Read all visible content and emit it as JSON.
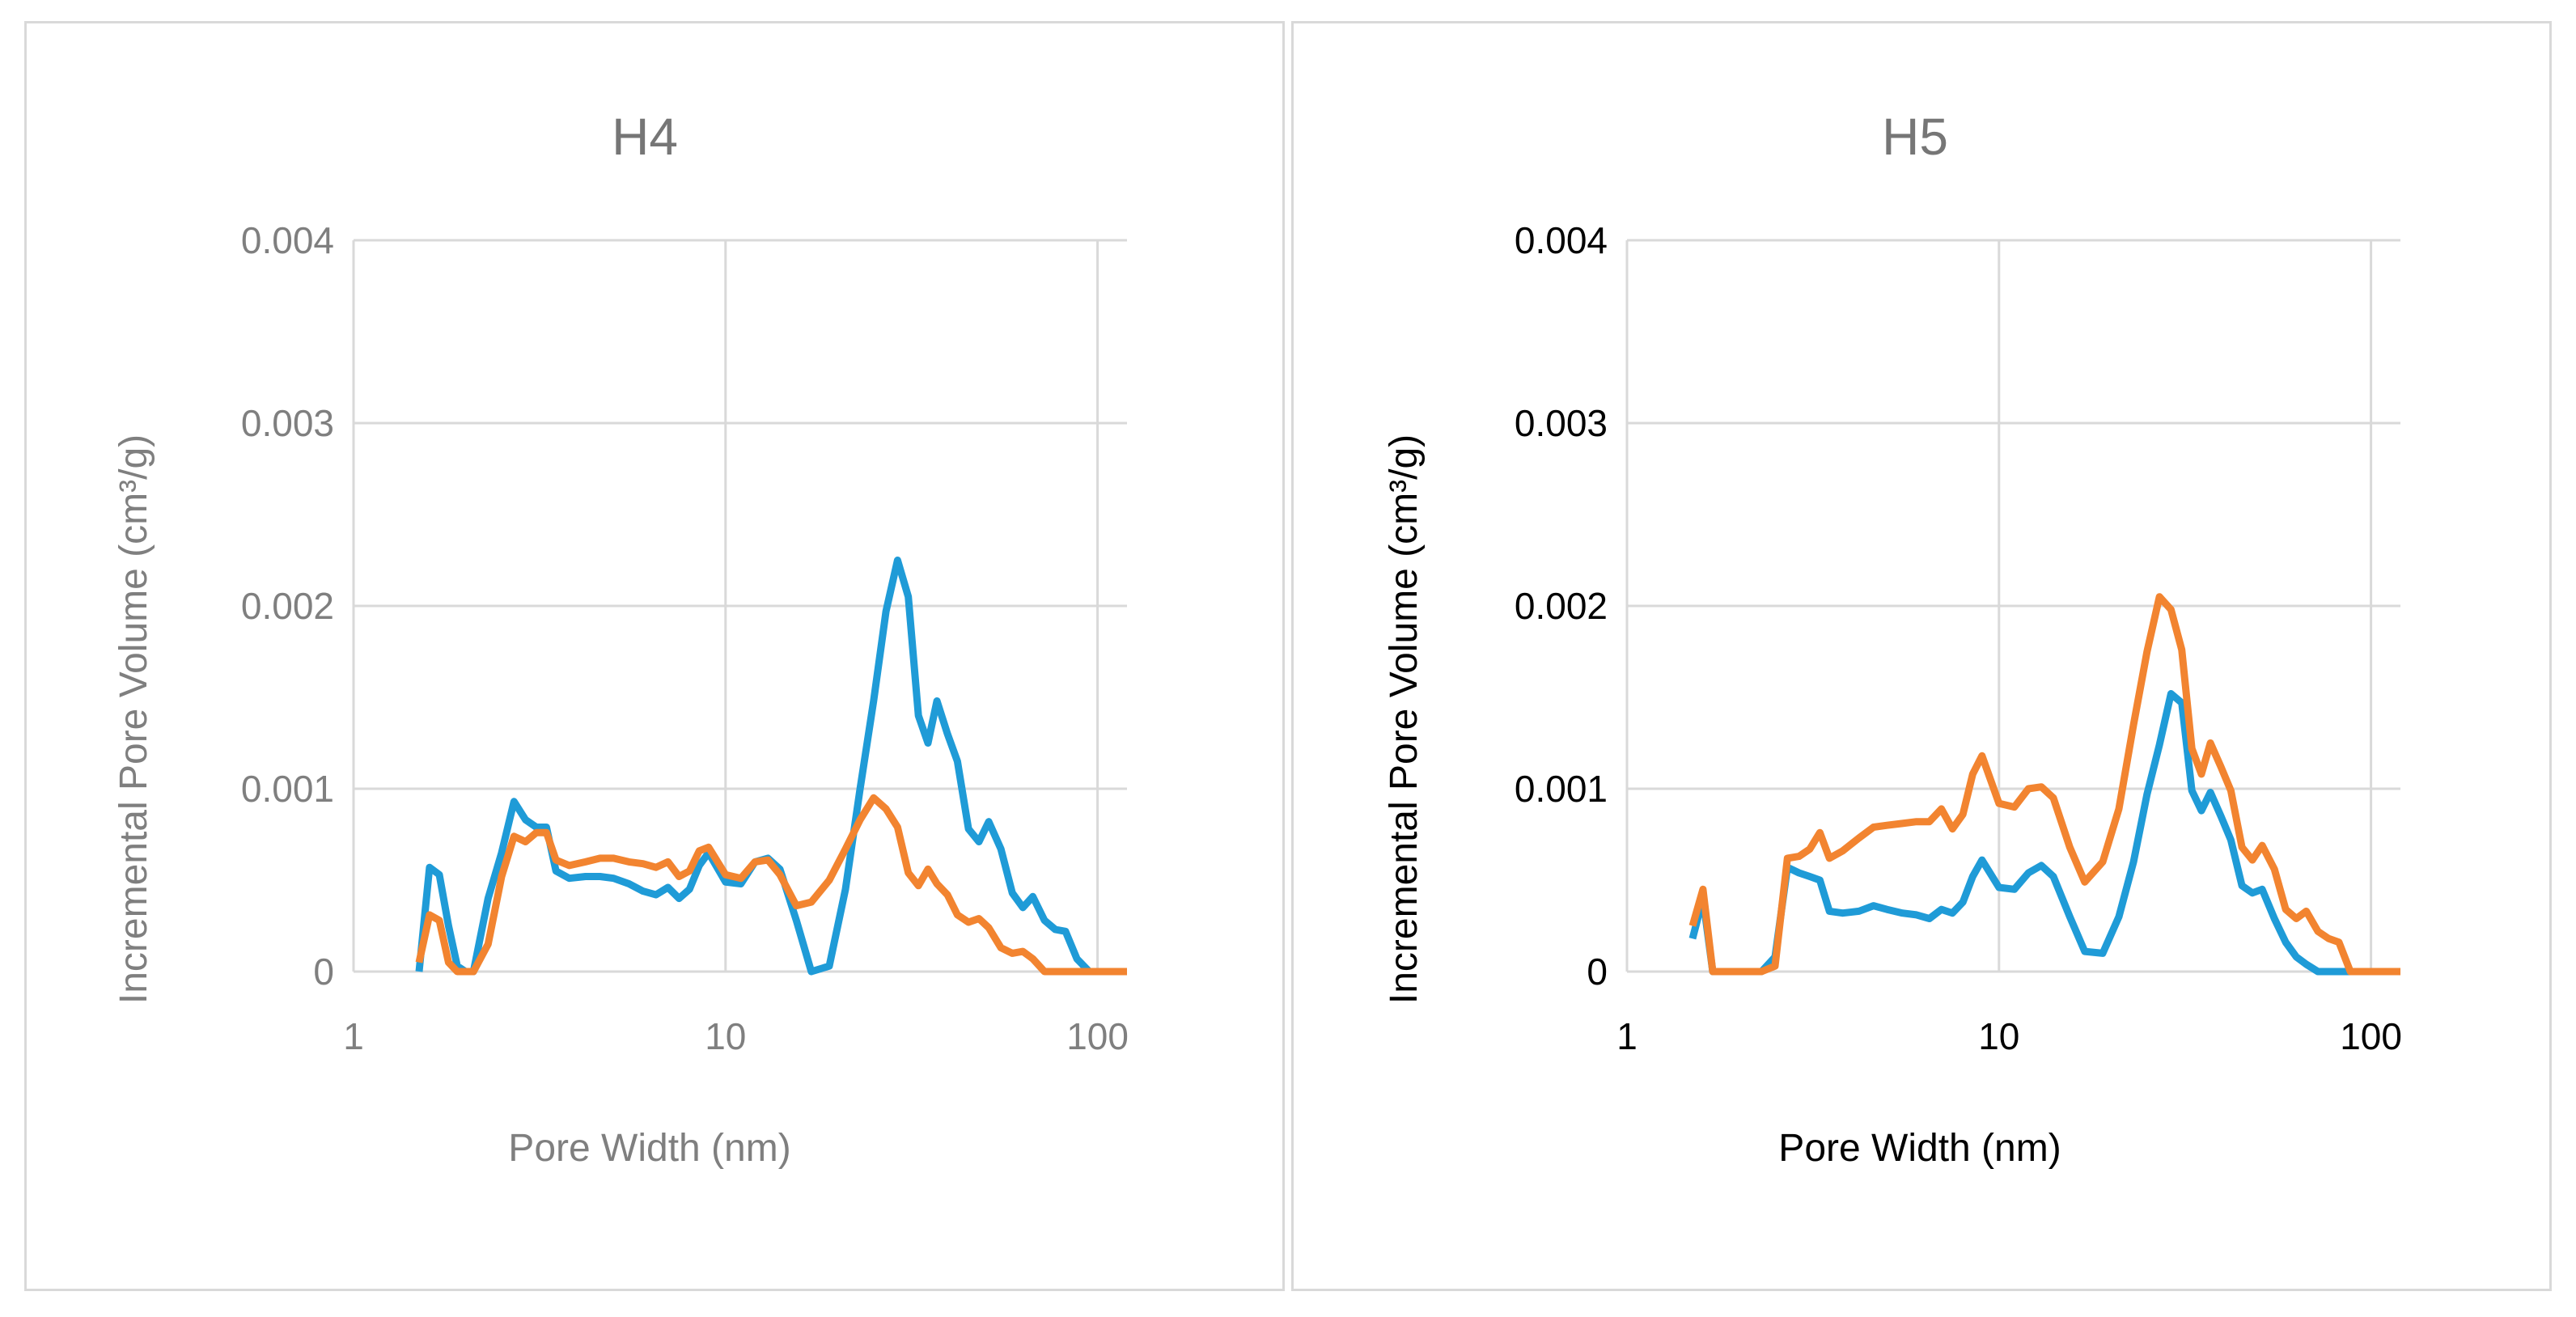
{
  "chart_data": [
    {
      "type": "line",
      "title": "H4",
      "xlabel": "Pore Width (nm)",
      "ylabel": "Incremental Pore Volume (cm³/g)",
      "xscale": "log",
      "xlim": [
        1,
        120
      ],
      "ylim": [
        0,
        0.004
      ],
      "xticks": [
        1,
        10,
        100
      ],
      "xtick_labels": [
        "1",
        "10",
        "100"
      ],
      "yticks": [
        0,
        0.001,
        0.002,
        0.003,
        0.004
      ],
      "ytick_labels": [
        "0",
        "0.001",
        "0.002",
        "0.003",
        "0.004"
      ],
      "grid": true,
      "text_color": "#7f7f7f",
      "series": [
        {
          "name": "series-blue",
          "color": "#1f9bd7",
          "x": [
            1.5,
            1.6,
            1.7,
            1.8,
            1.9,
            2.0,
            2.1,
            2.3,
            2.5,
            2.7,
            2.9,
            3.1,
            3.3,
            3.5,
            3.8,
            4.2,
            4.6,
            5.0,
            5.5,
            6.0,
            6.5,
            7.0,
            7.5,
            8.0,
            8.5,
            9.0,
            10.0,
            11.0,
            12.0,
            13.0,
            14.0,
            15.5,
            17.0,
            19.0,
            21.0,
            23.0,
            25.0,
            27.0,
            29.0,
            31.0,
            33.0,
            35.0,
            37.0,
            39.5,
            42.0,
            45.0,
            48.0,
            51.0,
            55.0,
            59.0,
            63.0,
            67.0,
            72.0,
            77.0,
            82.0,
            88.0,
            95.0,
            102.0,
            110.0,
            120.0
          ],
          "y": [
            0.0,
            0.00057,
            0.00053,
            0.00025,
            3e-05,
            0.0,
            0.0,
            0.0004,
            0.00065,
            0.00093,
            0.00083,
            0.00079,
            0.00079,
            0.00055,
            0.00051,
            0.00052,
            0.00052,
            0.00051,
            0.00048,
            0.00044,
            0.00042,
            0.00046,
            0.0004,
            0.00045,
            0.00058,
            0.00065,
            0.00049,
            0.00048,
            0.0006,
            0.00062,
            0.00056,
            0.00028,
            0.0,
            3e-05,
            0.00045,
            0.001,
            0.00148,
            0.00197,
            0.00225,
            0.00205,
            0.0014,
            0.00125,
            0.00148,
            0.0013,
            0.00115,
            0.00078,
            0.00071,
            0.00082,
            0.00067,
            0.00043,
            0.00035,
            0.00041,
            0.00028,
            0.00023,
            0.00022,
            7e-05,
            0.0,
            0.0,
            0.0,
            0.0
          ]
        },
        {
          "name": "series-orange",
          "color": "#f28430",
          "x": [
            1.5,
            1.6,
            1.7,
            1.8,
            1.9,
            2.0,
            2.1,
            2.3,
            2.5,
            2.7,
            2.9,
            3.1,
            3.3,
            3.5,
            3.8,
            4.2,
            4.6,
            5.0,
            5.5,
            6.0,
            6.5,
            7.0,
            7.5,
            8.0,
            8.5,
            9.0,
            10.0,
            11.0,
            12.0,
            13.0,
            14.0,
            15.5,
            17.0,
            19.0,
            21.0,
            23.0,
            25.0,
            27.0,
            29.0,
            31.0,
            33.0,
            35.0,
            37.0,
            39.5,
            42.0,
            45.0,
            48.0,
            51.0,
            55.0,
            59.0,
            63.0,
            67.0,
            72.0,
            77.0,
            82.0,
            88.0,
            95.0,
            102.0,
            110.0,
            120.0
          ],
          "y": [
            5e-05,
            0.00031,
            0.00028,
            5e-05,
            0.0,
            0.0,
            0.0,
            0.00015,
            0.00052,
            0.00074,
            0.00071,
            0.00076,
            0.00076,
            0.00061,
            0.00058,
            0.0006,
            0.00062,
            0.00062,
            0.0006,
            0.00059,
            0.00057,
            0.0006,
            0.00052,
            0.00055,
            0.00066,
            0.00068,
            0.00053,
            0.00051,
            0.0006,
            0.00061,
            0.00053,
            0.00036,
            0.00038,
            0.0005,
            0.00067,
            0.00083,
            0.00095,
            0.00089,
            0.00079,
            0.00054,
            0.00047,
            0.00056,
            0.00048,
            0.00042,
            0.00031,
            0.00027,
            0.00029,
            0.00024,
            0.00013,
            0.0001,
            0.00011,
            7e-05,
            0.0,
            0.0,
            0.0,
            0.0,
            0.0,
            0.0,
            0.0,
            0.0
          ]
        }
      ]
    },
    {
      "type": "line",
      "title": "H5",
      "xlabel": "Pore Width (nm)",
      "ylabel": "Incremental Pore Volume (cm³/g)",
      "xscale": "log",
      "xlim": [
        1,
        120
      ],
      "ylim": [
        0,
        0.004
      ],
      "xticks": [
        1,
        10,
        100
      ],
      "xtick_labels": [
        "1",
        "10",
        "100"
      ],
      "yticks": [
        0,
        0.001,
        0.002,
        0.003,
        0.004
      ],
      "ytick_labels": [
        "0",
        "0.001",
        "0.002",
        "0.003",
        "0.004"
      ],
      "grid": true,
      "text_color": "#000000",
      "series": [
        {
          "name": "series-blue",
          "color": "#1f9bd7",
          "x": [
            1.5,
            1.6,
            1.7,
            1.8,
            1.9,
            2.0,
            2.1,
            2.3,
            2.5,
            2.7,
            2.9,
            3.1,
            3.3,
            3.5,
            3.8,
            4.2,
            4.6,
            5.0,
            5.5,
            6.0,
            6.5,
            7.0,
            7.5,
            8.0,
            8.5,
            9.0,
            10.0,
            11.0,
            12.0,
            13.0,
            14.0,
            15.5,
            17.0,
            19.0,
            21.0,
            23.0,
            25.0,
            27.0,
            29.0,
            31.0,
            33.0,
            35.0,
            37.0,
            39.5,
            42.0,
            45.0,
            48.0,
            51.0,
            55.0,
            59.0,
            63.0,
            67.0,
            72.0,
            77.0,
            82.0,
            88.0,
            95.0,
            102.0,
            110.0,
            120.0
          ],
          "y": [
            0.00018,
            0.0004,
            0.0,
            0.0,
            0.0,
            0.0,
            0.0,
            0.0,
            8e-05,
            0.00057,
            0.00054,
            0.00052,
            0.0005,
            0.00033,
            0.00032,
            0.00033,
            0.00036,
            0.00034,
            0.00032,
            0.00031,
            0.00029,
            0.00034,
            0.00032,
            0.00038,
            0.00052,
            0.00061,
            0.00046,
            0.00045,
            0.00054,
            0.00058,
            0.00052,
            0.0003,
            0.00011,
            0.0001,
            0.0003,
            0.0006,
            0.00097,
            0.00124,
            0.00152,
            0.00147,
            0.00099,
            0.00088,
            0.00098,
            0.00085,
            0.00072,
            0.00047,
            0.00043,
            0.00045,
            0.00029,
            0.00016,
            8e-05,
            4e-05,
            0.0,
            0.0,
            0.0,
            0.0,
            0.0,
            0.0,
            0.0,
            0.0
          ]
        },
        {
          "name": "series-orange",
          "color": "#f28430",
          "x": [
            1.5,
            1.6,
            1.7,
            1.8,
            1.9,
            2.0,
            2.1,
            2.3,
            2.5,
            2.7,
            2.9,
            3.1,
            3.3,
            3.5,
            3.8,
            4.2,
            4.6,
            5.0,
            5.5,
            6.0,
            6.5,
            7.0,
            7.5,
            8.0,
            8.5,
            9.0,
            10.0,
            11.0,
            12.0,
            13.0,
            14.0,
            15.5,
            17.0,
            19.0,
            21.0,
            23.0,
            25.0,
            27.0,
            29.0,
            31.0,
            33.0,
            35.0,
            37.0,
            39.5,
            42.0,
            45.0,
            48.0,
            51.0,
            55.0,
            59.0,
            63.0,
            67.0,
            72.0,
            77.0,
            82.0,
            88.0,
            95.0,
            102.0,
            110.0,
            120.0
          ],
          "y": [
            0.00025,
            0.00045,
            0.0,
            0.0,
            0.0,
            0.0,
            0.0,
            0.0,
            3e-05,
            0.00062,
            0.00063,
            0.00067,
            0.00076,
            0.00062,
            0.00066,
            0.00073,
            0.00079,
            0.0008,
            0.00081,
            0.00082,
            0.00082,
            0.00089,
            0.00078,
            0.00086,
            0.00108,
            0.00118,
            0.00092,
            0.0009,
            0.001,
            0.00101,
            0.00095,
            0.00068,
            0.00049,
            0.0006,
            0.00089,
            0.00135,
            0.00175,
            0.00205,
            0.00198,
            0.00176,
            0.00122,
            0.00108,
            0.00125,
            0.00112,
            0.00099,
            0.00068,
            0.00061,
            0.00069,
            0.00056,
            0.00034,
            0.00029,
            0.00033,
            0.00022,
            0.00018,
            0.00016,
            0.0,
            0.0,
            0.0,
            0.0,
            0.0
          ]
        }
      ]
    }
  ]
}
